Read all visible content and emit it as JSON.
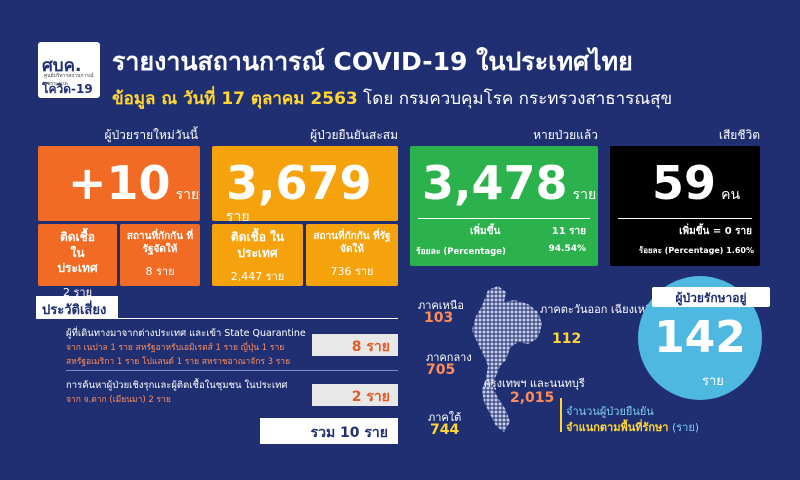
{
  "header": {
    "logo_main": "ศบค.",
    "logo_small": "ศูนย์บริหารสถานการณ์แพร่ระบาด",
    "logo_sub": "โควิด-19",
    "title": "รายงานสถานการณ์ COVID-19 ในประเทศไทย",
    "subtitle_bold": "ข้อมูล ณ วันที่ 17 ตุลาคม 2563",
    "subtitle_rest": "โดย กรมควบคุมโรค กระทรวงสาธารณสุข"
  },
  "new_cases": {
    "label": "ผู้ป่วยรายใหม่วันนี้",
    "value": "+10",
    "unit": "ราย",
    "local_label": "ติดเชื้อ ในประเทศ",
    "local_value": "2 ราย",
    "quarantine_label": "สถานที่กักกัน ที่รัฐจัดให้",
    "quarantine_value": "8 ราย"
  },
  "total_cases": {
    "label": "ผู้ป่วยยืนยันสะสม",
    "value": "3,679",
    "unit": "ราย",
    "local_label": "ติดเชื้อ ในประเทศ",
    "local_value": "2,447 ราย",
    "quarantine_label": "สถานที่กักกัน ที่รัฐจัดให้",
    "quarantine_value": "736 ราย"
  },
  "recovered": {
    "label": "หายป่วยแล้ว",
    "value": "3,478",
    "unit": "ราย",
    "inc_label": "เพิ่มขึ้น",
    "inc_value": "11 ราย",
    "pct_label": "ร้อยละ (Percentage)",
    "pct_value": "94.54%"
  },
  "deaths": {
    "label": "เสียชีวิต",
    "value": "59",
    "unit": "คน",
    "inc_text": "เพิ่มขึ้น = 0 ราย",
    "pct_text": "ร้อยละ (Percentage) 1.60%"
  },
  "risk": {
    "title": "ประวัติเสี่ยง",
    "rows": [
      {
        "text": "ผู้ที่เดินทางมาจากต่างประเทศ และเข้า State Quarantine",
        "detail1": "จาก เนปาล 1 ราย สหรัฐอาหรับเอมิเรตส์ 1 ราย ญี่ปุ่น 1 ราย",
        "detail2": "สหรัฐอเมริกา 1 ราย โปแลนด์ 1 ราย สหราชอาณาจักร 3 ราย",
        "value": "8 ราย"
      },
      {
        "text": "การค้นหาผู้ป่วยเชิงรุกและผู้ติดเชื้อในชุมชน ในประเทศ",
        "detail1": "จาก จ.ตาก (เมียนมา) 2 ราย",
        "detail2": "",
        "value": "2 ราย"
      }
    ],
    "total": "รวม 10 ราย"
  },
  "regions": {
    "north_label": "ภาคเหนือ",
    "north_value": "103",
    "northeast_label": "ภาคตะวันออก เฉียงเหนือ",
    "northeast_value": "112",
    "central_label": "ภาคกลาง",
    "central_value": "705",
    "bangkok_label": "กรุงเทพฯ และนนทบุรี",
    "bangkok_value": "2,015",
    "south_label": "ภาคใต้",
    "south_value": "744",
    "note1": "จำนวนผู้ป่วยยืนยัน",
    "note2": "จำแนกตามพื้นที่รักษา",
    "note3": "(ราย)"
  },
  "treating": {
    "label": "ผู้ป่วยรักษาอยู่",
    "value": "142",
    "unit": "ราย"
  },
  "colors": {
    "bg": "#1f2f72",
    "orange": "#f26b24",
    "amber": "#f5a20d",
    "green": "#2bb24c",
    "black": "#000000",
    "blue_circle": "#4fb8e0",
    "yellow": "#ffd633",
    "salmon": "#ff8c5a"
  }
}
